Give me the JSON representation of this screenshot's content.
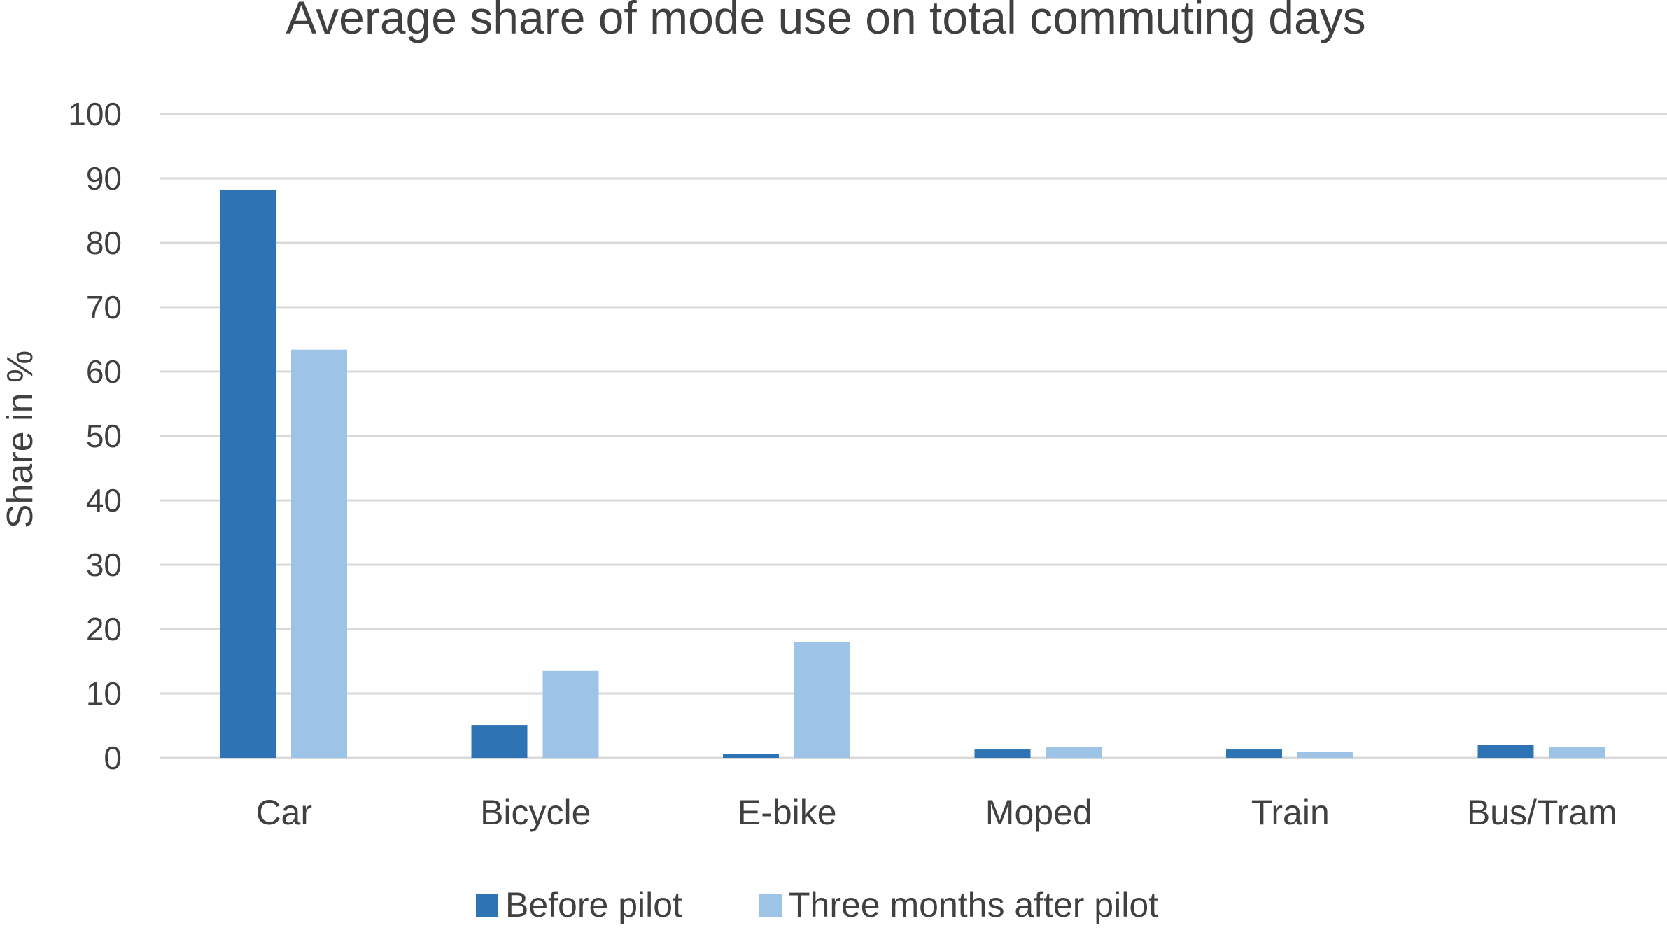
{
  "chart_data": {
    "type": "bar",
    "title": "Average share of mode use on total commuting days",
    "xlabel": "",
    "ylabel": "Share in %",
    "ylim": [
      0,
      100
    ],
    "yticks": [
      0,
      10,
      20,
      30,
      40,
      50,
      60,
      70,
      80,
      90,
      100
    ],
    "grid": true,
    "legend_position": "bottom",
    "categories": [
      "Car",
      "Bicycle",
      "E-bike",
      "Moped",
      "Train",
      "Bus/Tram"
    ],
    "series": [
      {
        "name": "Before pilot",
        "color": "#2e74b5",
        "values": [
          88.2,
          5.1,
          0.6,
          1.3,
          1.3,
          2.0
        ]
      },
      {
        "name": "Three months after pilot",
        "color": "#9dc3e6",
        "values": [
          63.4,
          13.5,
          18.0,
          1.7,
          0.9,
          1.7
        ]
      }
    ]
  }
}
